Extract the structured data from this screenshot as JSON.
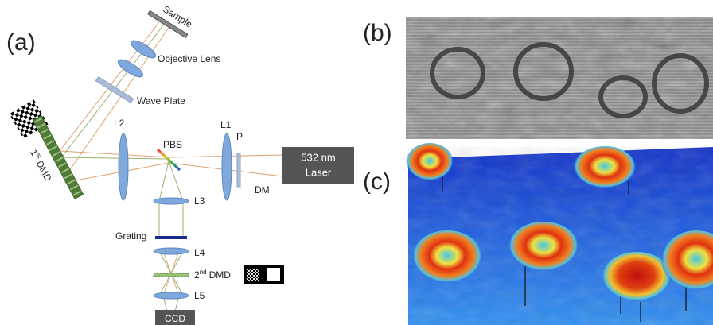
{
  "panels": {
    "a": {
      "label": "(a)",
      "sample": "Sample",
      "objective_lens": "Objective Lens",
      "wave_plate": "Wave Plate",
      "dmd1": {
        "number": "1",
        "suffix": "st",
        "name": "DMD"
      },
      "l2": "L2",
      "pbs": "PBS",
      "l1": "L1",
      "polarizer": "P",
      "laser": {
        "line1": "532 nm",
        "line2": "Laser"
      },
      "dm": "DM",
      "l3": "L3",
      "grating": "Grating",
      "l4": "L4",
      "dmd2": {
        "number": "2",
        "suffix": "nd",
        "name": "DMD"
      },
      "l5": "L5",
      "ccd": "CCD"
    },
    "b": {
      "label": "(b)"
    },
    "c": {
      "label": "(c)"
    }
  }
}
